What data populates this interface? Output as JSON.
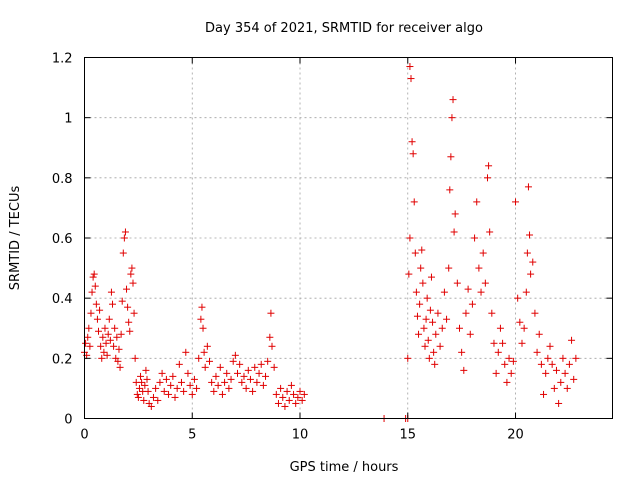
{
  "chart_data": {
    "type": "scatter",
    "title": "Day 354 of 2021, SRMTID for receiver algo",
    "xlabel": "GPS time / hours",
    "ylabel": "SRMTID / TECUs",
    "xlim": [
      0,
      24.5
    ],
    "ylim": [
      0,
      1.2
    ],
    "xticks": [
      0,
      5,
      10,
      15,
      20
    ],
    "yticks": [
      0,
      0.2,
      0.4,
      0.6,
      0.8,
      1,
      1.2
    ],
    "xtick_labels": [
      "0",
      "5",
      "10",
      "15",
      "20"
    ],
    "ytick_labels": [
      "0",
      "0.2",
      "0.4",
      "0.6",
      "0.8",
      "1",
      "1.2"
    ],
    "grid": true,
    "marker": "+",
    "color": "#e00000",
    "series": [
      {
        "name": "receiver algo",
        "points": [
          [
            0.0,
            0.22
          ],
          [
            0.05,
            0.25
          ],
          [
            0.1,
            0.21
          ],
          [
            0.15,
            0.27
          ],
          [
            0.2,
            0.3
          ],
          [
            0.25,
            0.24
          ],
          [
            0.3,
            0.35
          ],
          [
            0.35,
            0.42
          ],
          [
            0.4,
            0.47
          ],
          [
            0.45,
            0.48
          ],
          [
            0.5,
            0.44
          ],
          [
            0.55,
            0.38
          ],
          [
            0.6,
            0.33
          ],
          [
            0.65,
            0.29
          ],
          [
            0.7,
            0.36
          ],
          [
            0.75,
            0.24
          ],
          [
            0.8,
            0.2
          ],
          [
            0.85,
            0.27
          ],
          [
            0.9,
            0.22
          ],
          [
            0.95,
            0.3
          ],
          [
            1.0,
            0.25
          ],
          [
            1.05,
            0.21
          ],
          [
            1.1,
            0.28
          ],
          [
            1.15,
            0.33
          ],
          [
            1.2,
            0.26
          ],
          [
            1.25,
            0.42
          ],
          [
            1.3,
            0.38
          ],
          [
            1.35,
            0.24
          ],
          [
            1.4,
            0.3
          ],
          [
            1.45,
            0.2
          ],
          [
            1.5,
            0.27
          ],
          [
            1.55,
            0.19
          ],
          [
            1.6,
            0.23
          ],
          [
            1.65,
            0.17
          ],
          [
            1.7,
            0.28
          ],
          [
            1.75,
            0.39
          ],
          [
            1.8,
            0.55
          ],
          [
            1.85,
            0.6
          ],
          [
            1.9,
            0.62
          ],
          [
            1.95,
            0.43
          ],
          [
            2.0,
            0.37
          ],
          [
            2.05,
            0.32
          ],
          [
            2.1,
            0.29
          ],
          [
            2.15,
            0.48
          ],
          [
            2.2,
            0.5
          ],
          [
            2.25,
            0.45
          ],
          [
            2.3,
            0.35
          ],
          [
            2.35,
            0.2
          ],
          [
            2.4,
            0.12
          ],
          [
            2.45,
            0.08
          ],
          [
            2.5,
            0.07
          ],
          [
            2.55,
            0.1
          ],
          [
            2.6,
            0.14
          ],
          [
            2.65,
            0.12
          ],
          [
            2.7,
            0.09
          ],
          [
            2.75,
            0.06
          ],
          [
            2.8,
            0.11
          ],
          [
            2.85,
            0.16
          ],
          [
            2.9,
            0.13
          ],
          [
            2.95,
            0.09
          ],
          [
            3.0,
            0.05
          ],
          [
            3.1,
            0.04
          ],
          [
            3.2,
            0.07
          ],
          [
            3.3,
            0.1
          ],
          [
            3.4,
            0.06
          ],
          [
            3.5,
            0.12
          ],
          [
            3.6,
            0.15
          ],
          [
            3.7,
            0.09
          ],
          [
            3.8,
            0.13
          ],
          [
            3.9,
            0.08
          ],
          [
            4.0,
            0.11
          ],
          [
            4.1,
            0.14
          ],
          [
            4.2,
            0.07
          ],
          [
            4.3,
            0.1
          ],
          [
            4.4,
            0.18
          ],
          [
            4.5,
            0.12
          ],
          [
            4.6,
            0.09
          ],
          [
            4.7,
            0.22
          ],
          [
            4.8,
            0.15
          ],
          [
            4.9,
            0.11
          ],
          [
            5.0,
            0.08
          ],
          [
            5.1,
            0.13
          ],
          [
            5.2,
            0.1
          ],
          [
            5.3,
            0.2
          ],
          [
            5.4,
            0.33
          ],
          [
            5.45,
            0.37
          ],
          [
            5.5,
            0.3
          ],
          [
            5.55,
            0.22
          ],
          [
            5.6,
            0.17
          ],
          [
            5.7,
            0.24
          ],
          [
            5.8,
            0.19
          ],
          [
            5.9,
            0.12
          ],
          [
            6.0,
            0.09
          ],
          [
            6.1,
            0.14
          ],
          [
            6.2,
            0.11
          ],
          [
            6.3,
            0.17
          ],
          [
            6.4,
            0.08
          ],
          [
            6.5,
            0.12
          ],
          [
            6.6,
            0.15
          ],
          [
            6.7,
            0.1
          ],
          [
            6.8,
            0.13
          ],
          [
            6.9,
            0.19
          ],
          [
            7.0,
            0.21
          ],
          [
            7.1,
            0.15
          ],
          [
            7.2,
            0.18
          ],
          [
            7.3,
            0.12
          ],
          [
            7.4,
            0.14
          ],
          [
            7.5,
            0.1
          ],
          [
            7.6,
            0.16
          ],
          [
            7.7,
            0.13
          ],
          [
            7.8,
            0.09
          ],
          [
            7.9,
            0.17
          ],
          [
            8.0,
            0.12
          ],
          [
            8.1,
            0.15
          ],
          [
            8.2,
            0.18
          ],
          [
            8.3,
            0.11
          ],
          [
            8.4,
            0.14
          ],
          [
            8.5,
            0.19
          ],
          [
            8.6,
            0.27
          ],
          [
            8.65,
            0.35
          ],
          [
            8.7,
            0.24
          ],
          [
            8.8,
            0.17
          ],
          [
            8.9,
            0.08
          ],
          [
            9.0,
            0.05
          ],
          [
            9.1,
            0.1
          ],
          [
            9.2,
            0.07
          ],
          [
            9.3,
            0.04
          ],
          [
            9.4,
            0.09
          ],
          [
            9.5,
            0.06
          ],
          [
            9.6,
            0.11
          ],
          [
            9.7,
            0.08
          ],
          [
            9.8,
            0.05
          ],
          [
            9.9,
            0.07
          ],
          [
            10.0,
            0.09
          ],
          [
            10.1,
            0.06
          ],
          [
            10.2,
            0.08
          ],
          [
            13.9,
            0.0
          ],
          [
            14.9,
            0.0
          ],
          [
            15.0,
            0.0
          ],
          [
            15.0,
            0.2
          ],
          [
            15.05,
            0.48
          ],
          [
            15.1,
            0.6
          ],
          [
            15.1,
            1.17
          ],
          [
            15.15,
            1.13
          ],
          [
            15.2,
            0.92
          ],
          [
            15.25,
            0.88
          ],
          [
            15.3,
            0.72
          ],
          [
            15.35,
            0.55
          ],
          [
            15.4,
            0.42
          ],
          [
            15.45,
            0.34
          ],
          [
            15.5,
            0.28
          ],
          [
            15.55,
            0.38
          ],
          [
            15.6,
            0.5
          ],
          [
            15.65,
            0.56
          ],
          [
            15.7,
            0.45
          ],
          [
            15.75,
            0.3
          ],
          [
            15.8,
            0.24
          ],
          [
            15.85,
            0.33
          ],
          [
            15.9,
            0.4
          ],
          [
            15.95,
            0.26
          ],
          [
            16.0,
            0.2
          ],
          [
            16.05,
            0.36
          ],
          [
            16.1,
            0.47
          ],
          [
            16.15,
            0.32
          ],
          [
            16.2,
            0.22
          ],
          [
            16.25,
            0.18
          ],
          [
            16.3,
            0.28
          ],
          [
            16.4,
            0.35
          ],
          [
            16.5,
            0.24
          ],
          [
            16.6,
            0.3
          ],
          [
            16.7,
            0.42
          ],
          [
            16.8,
            0.33
          ],
          [
            16.9,
            0.5
          ],
          [
            16.95,
            0.76
          ],
          [
            17.0,
            0.87
          ],
          [
            17.05,
            1.0
          ],
          [
            17.1,
            1.06
          ],
          [
            17.15,
            0.62
          ],
          [
            17.2,
            0.68
          ],
          [
            17.3,
            0.45
          ],
          [
            17.4,
            0.3
          ],
          [
            17.5,
            0.22
          ],
          [
            17.6,
            0.16
          ],
          [
            17.7,
            0.35
          ],
          [
            17.8,
            0.43
          ],
          [
            17.9,
            0.28
          ],
          [
            18.0,
            0.38
          ],
          [
            18.1,
            0.6
          ],
          [
            18.2,
            0.72
          ],
          [
            18.3,
            0.5
          ],
          [
            18.4,
            0.42
          ],
          [
            18.5,
            0.55
          ],
          [
            18.6,
            0.45
          ],
          [
            18.7,
            0.8
          ],
          [
            18.75,
            0.84
          ],
          [
            18.8,
            0.62
          ],
          [
            18.9,
            0.35
          ],
          [
            19.0,
            0.25
          ],
          [
            19.1,
            0.15
          ],
          [
            19.2,
            0.22
          ],
          [
            19.3,
            0.3
          ],
          [
            19.4,
            0.25
          ],
          [
            19.5,
            0.18
          ],
          [
            19.6,
            0.12
          ],
          [
            19.7,
            0.2
          ],
          [
            19.8,
            0.15
          ],
          [
            19.9,
            0.19
          ],
          [
            20.0,
            0.72
          ],
          [
            20.1,
            0.4
          ],
          [
            20.2,
            0.32
          ],
          [
            20.3,
            0.25
          ],
          [
            20.4,
            0.3
          ],
          [
            20.5,
            0.42
          ],
          [
            20.55,
            0.55
          ],
          [
            20.6,
            0.77
          ],
          [
            20.65,
            0.61
          ],
          [
            20.7,
            0.48
          ],
          [
            20.8,
            0.52
          ],
          [
            20.9,
            0.35
          ],
          [
            21.0,
            0.22
          ],
          [
            21.1,
            0.28
          ],
          [
            21.2,
            0.18
          ],
          [
            21.3,
            0.08
          ],
          [
            21.4,
            0.15
          ],
          [
            21.5,
            0.2
          ],
          [
            21.6,
            0.24
          ],
          [
            21.7,
            0.18
          ],
          [
            21.8,
            0.1
          ],
          [
            21.9,
            0.16
          ],
          [
            22.0,
            0.05
          ],
          [
            22.1,
            0.12
          ],
          [
            22.2,
            0.2
          ],
          [
            22.3,
            0.15
          ],
          [
            22.4,
            0.1
          ],
          [
            22.5,
            0.18
          ],
          [
            22.6,
            0.26
          ],
          [
            22.7,
            0.13
          ],
          [
            22.8,
            0.2
          ]
        ]
      }
    ]
  }
}
